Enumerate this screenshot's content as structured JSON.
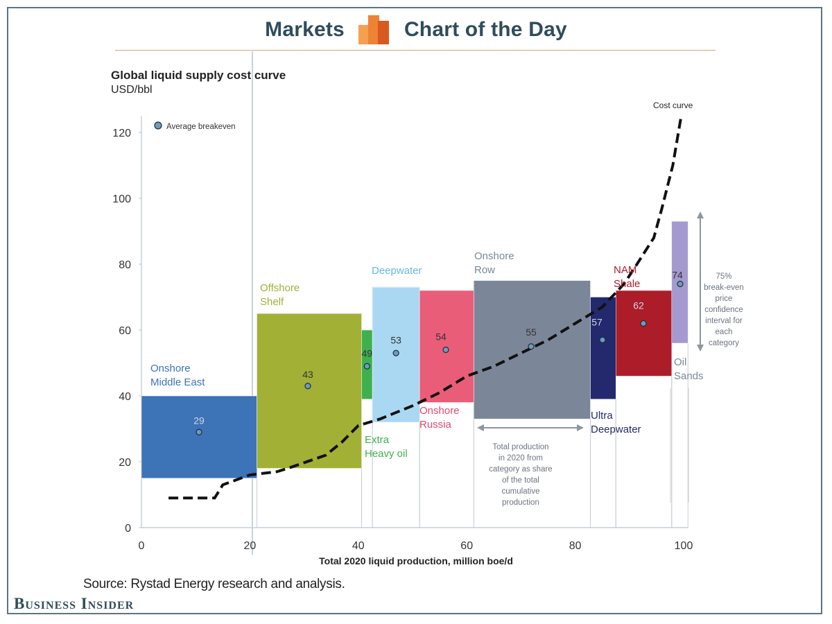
{
  "header": {
    "left_label": "Markets",
    "right_label": "Chart of the Day"
  },
  "chart_data": {
    "type": "bar",
    "title": "Global liquid supply cost curve",
    "subtitle": "USD/bbl",
    "xlabel": "Total 2020 liquid production, million boe/d",
    "x_ticks": [
      "0",
      "20",
      "40",
      "60",
      "80",
      "100"
    ],
    "y_ticks": [
      "0",
      "20",
      "40",
      "60",
      "80",
      "100",
      "120"
    ],
    "xlim": [
      0,
      100
    ],
    "ylim": [
      0,
      125
    ],
    "legend": {
      "label": "Average breakeven",
      "placement": "top-left"
    },
    "categories": [
      {
        "name": "Onshore Middle East",
        "label_lines": [
          "Onshore",
          "Middle East"
        ],
        "x_start": 0,
        "x_end": 21.3,
        "low": 15,
        "high": 40,
        "breakeven": 29,
        "color": "#3d73b7",
        "label_color": "#3d73b7"
      },
      {
        "name": "Offshore Shelf",
        "label_lines": [
          "Offshore",
          "Shelf"
        ],
        "x_start": 21.3,
        "x_end": 40.6,
        "low": 18,
        "high": 65,
        "breakeven": 43,
        "color": "#a2b035",
        "label_color": "#a2b035"
      },
      {
        "name": "Extra Heavy oil",
        "label_lines": [
          "Extra",
          "Heavy oil"
        ],
        "x_start": 40.6,
        "x_end": 42.6,
        "low": 39,
        "high": 60,
        "breakeven": 49,
        "color": "#3fb04e",
        "label_color": "#3fb04e"
      },
      {
        "name": "Deepwater",
        "label_lines": [
          "Deepwater"
        ],
        "x_start": 42.6,
        "x_end": 51.3,
        "low": 32,
        "high": 73,
        "breakeven": 53,
        "color": "#aad8f2",
        "label_color": "#66b8e4"
      },
      {
        "name": "Onshore Russia",
        "label_lines": [
          "Onshore",
          "Russia"
        ],
        "x_start": 51.3,
        "x_end": 61.3,
        "low": 38,
        "high": 72,
        "breakeven": 54,
        "color": "#ea5d79",
        "label_color": "#e04a6e"
      },
      {
        "name": "Onshore Row",
        "label_lines": [
          "Onshore",
          "Row"
        ],
        "x_start": 61.3,
        "x_end": 82.8,
        "low": 33,
        "high": 75,
        "breakeven": 55,
        "color": "#7b8799",
        "label_color": "#7b8799"
      },
      {
        "name": "Ultra Deepwater",
        "label_lines": [
          "Ultra",
          "Deepwater"
        ],
        "x_start": 82.8,
        "x_end": 87.5,
        "low": 39,
        "high": 70,
        "breakeven": 57,
        "color": "#23296c",
        "label_color": "#23296c"
      },
      {
        "name": "NAM Shale",
        "label_lines": [
          "NAM",
          "Shale"
        ],
        "x_start": 87.5,
        "x_end": 97.8,
        "low": 46,
        "high": 72,
        "breakeven": 62,
        "color": "#ad1c29",
        "label_color": "#ad1c29"
      },
      {
        "name": "Oil Sands",
        "label_lines": [
          "Oil",
          "Sands"
        ],
        "x_start": 97.8,
        "x_end": 101.2,
        "low": 56,
        "high": 93,
        "breakeven": 74,
        "color": "#a59ad0",
        "label_color": "#7b8799"
      }
    ],
    "cost_curve": {
      "name": "Cost curve",
      "x": [
        5,
        13.5,
        15,
        20,
        25,
        27,
        34,
        37,
        40,
        44,
        50,
        55,
        60,
        65,
        70,
        75,
        80,
        85,
        89,
        91,
        94.5,
        96,
        98,
        99.5
      ],
      "y": [
        9,
        9,
        13,
        16,
        17,
        18,
        22,
        26,
        31,
        33,
        37,
        41,
        46,
        49,
        53,
        57,
        62,
        67,
        74,
        79,
        88,
        97,
        110,
        125
      ]
    },
    "annotations": {
      "production_share": [
        "Total production",
        "in 2020 from",
        "category as share",
        "of the total",
        "cumulative",
        "production"
      ],
      "confidence_interval": [
        "75%",
        "break-even",
        "price",
        "confidence",
        "interval for",
        "each",
        "category"
      ]
    }
  },
  "source": "Source: Rystad Energy research and analysis.",
  "brand": "Business Insider",
  "colors": {
    "logo_light": "#f5a04f",
    "logo_mid": "#ee8235",
    "logo_dark": "#d85a1f"
  }
}
